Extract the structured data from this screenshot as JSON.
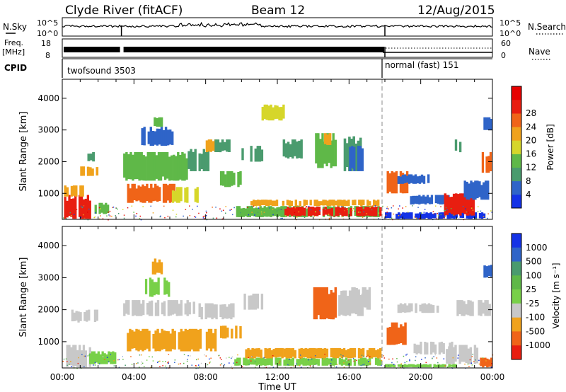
{
  "header": {
    "station": "Clyde River (fitACF)",
    "beam": "Beam 12",
    "date": "12/Aug/2015"
  },
  "strip": {
    "nsky_label": "N.Sky",
    "nsky_tick_top": "10^5",
    "nsky_tick_bottom": "10^0",
    "nsearch_label": "N.Search",
    "freq_label": "Freq.",
    "freq_unit": "[MHz]",
    "freq_tick_top": "18",
    "freq_tick_bottom": "8",
    "nave_tick_top": "60",
    "nave_tick_bottom": "0",
    "nave_label": "Nave",
    "cpid_label": "CPID",
    "cpid_segments": [
      {
        "label": "twofsound 3503",
        "start_hour": 0,
        "end_hour": 18
      },
      {
        "label": "normal (fast) 151",
        "start_hour": 18,
        "end_hour": 24
      }
    ]
  },
  "chart_data": [
    {
      "type": "heatmap",
      "panel": "power",
      "ylabel": "Slant Range [km]",
      "xlabel": "",
      "ylim": [
        180,
        4600
      ],
      "yticks": [
        "1000",
        "2000",
        "3000",
        "4000"
      ],
      "xlim_hours": [
        0,
        24
      ],
      "colorbar": {
        "label": "Power [dB]",
        "ticks": [
          "4",
          "8",
          "12",
          "16",
          "20",
          "24",
          "28"
        ],
        "colors": [
          "#1432e6",
          "#2f64c8",
          "#4a9b6e",
          "#5fb848",
          "#d6d62a",
          "#f0a21c",
          "#f06418",
          "#e81e10",
          "#e60000"
        ]
      },
      "regions": [
        {
          "t": [
            0.1,
            1.6
          ],
          "r": [
            200,
            950
          ],
          "color": "#e81e10"
        },
        {
          "t": [
            0.1,
            1.2
          ],
          "r": [
            900,
            1250
          ],
          "color": "#f0a21c"
        },
        {
          "t": [
            1.0,
            2.0
          ],
          "r": [
            1550,
            1850
          ],
          "color": "#f0a21c"
        },
        {
          "t": [
            1.4,
            1.8
          ],
          "r": [
            2000,
            2300
          ],
          "color": "#4a9b6e"
        },
        {
          "t": [
            1.8,
            2.6
          ],
          "r": [
            350,
            700
          ],
          "color": "#5fb848"
        },
        {
          "t": [
            3.4,
            7.0
          ],
          "r": [
            1400,
            2300
          ],
          "color": "#5fb848"
        },
        {
          "t": [
            3.5,
            6.3
          ],
          "r": [
            700,
            1300
          ],
          "color": "#f06418"
        },
        {
          "t": [
            4.4,
            6.2
          ],
          "r": [
            2500,
            3100
          ],
          "color": "#2f64c8"
        },
        {
          "t": [
            5.1,
            5.6
          ],
          "r": [
            3100,
            3400
          ],
          "color": "#5fb848"
        },
        {
          "t": [
            6.0,
            7.6
          ],
          "r": [
            700,
            1200
          ],
          "color": "#d6d62a"
        },
        {
          "t": [
            7.0,
            8.2
          ],
          "r": [
            1700,
            2400
          ],
          "color": "#4a9b6e"
        },
        {
          "t": [
            8.0,
            8.6
          ],
          "r": [
            2300,
            2700
          ],
          "color": "#f0a21c"
        },
        {
          "t": [
            8.5,
            9.5
          ],
          "r": [
            2300,
            2700
          ],
          "color": "#4a9b6e"
        },
        {
          "t": [
            8.8,
            10.0
          ],
          "r": [
            1200,
            1700
          ],
          "color": "#5fb848"
        },
        {
          "t": [
            10.0,
            11.2
          ],
          "r": [
            2000,
            2500
          ],
          "color": "#4a9b6e"
        },
        {
          "t": [
            11.0,
            12.4
          ],
          "r": [
            3300,
            3800
          ],
          "color": "#d6d62a"
        },
        {
          "t": [
            12.3,
            13.4
          ],
          "r": [
            2100,
            2700
          ],
          "color": "#4a9b6e"
        },
        {
          "t": [
            14.1,
            15.3
          ],
          "r": [
            1800,
            2900
          ],
          "color": "#5fb848"
        },
        {
          "t": [
            14.6,
            15.0
          ],
          "r": [
            2500,
            2900
          ],
          "color": "#f0a21c"
        },
        {
          "t": [
            15.7,
            16.7
          ],
          "r": [
            1700,
            2800
          ],
          "color": "#4a9b6e"
        },
        {
          "t": [
            9.7,
            17.7
          ],
          "r": [
            250,
            600
          ],
          "color": "#5fb848"
        },
        {
          "t": [
            12.4,
            17.8
          ],
          "r": [
            280,
            580
          ],
          "color": "#e81e10"
        },
        {
          "t": [
            10.5,
            17.8
          ],
          "r": [
            600,
            800
          ],
          "color": "#f0a21c"
        },
        {
          "t": [
            18.1,
            19.3
          ],
          "r": [
            1000,
            1700
          ],
          "color": "#f06418"
        },
        {
          "t": [
            18.7,
            20.6
          ],
          "r": [
            1300,
            1600
          ],
          "color": "#2f64c8"
        },
        {
          "t": [
            18.0,
            23.6
          ],
          "r": [
            200,
            400
          ],
          "color": "#1432e6"
        },
        {
          "t": [
            19.4,
            21.6
          ],
          "r": [
            650,
            950
          ],
          "color": "#2f64c8"
        },
        {
          "t": [
            21.3,
            23.0
          ],
          "r": [
            300,
            1000
          ],
          "color": "#e81e10"
        },
        {
          "t": [
            22.4,
            23.8
          ],
          "r": [
            800,
            1400
          ],
          "color": "#2f64c8"
        },
        {
          "t": [
            23.4,
            23.95
          ],
          "r": [
            1650,
            2300
          ],
          "color": "#f06418"
        },
        {
          "t": [
            23.5,
            24.0
          ],
          "r": [
            3000,
            3400
          ],
          "color": "#2f64c8"
        },
        {
          "t": [
            21.9,
            22.5
          ],
          "r": [
            2300,
            2700
          ],
          "color": "#4a9b6e"
        },
        {
          "t": [
            16.0,
            16.8
          ],
          "r": [
            1700,
            2500
          ],
          "color": "#2f64c8"
        }
      ]
    },
    {
      "type": "heatmap",
      "panel": "velocity",
      "ylabel": "Slant Range [km]",
      "xlabel": "Time UT",
      "ylim": [
        180,
        4600
      ],
      "yticks": [
        "1000",
        "2000",
        "3000",
        "4000"
      ],
      "xlim_hours": [
        0,
        24
      ],
      "xticks": [
        "00:00",
        "04:00",
        "08:00",
        "12:00",
        "16:00",
        "20:00",
        "00:00"
      ],
      "colorbar": {
        "label": "Velocity [m s⁻¹]",
        "ticks": [
          "1000",
          "500",
          "100",
          "25",
          "-25",
          "-100",
          "-500",
          "-1000"
        ],
        "colors": [
          "#1432e6",
          "#2f64c8",
          "#4a9b6e",
          "#5fb848",
          "#78d048",
          "#c8c8c8",
          "#f0a21c",
          "#f06418",
          "#e81e10"
        ]
      },
      "regions": [
        {
          "t": [
            0.1,
            1.6
          ],
          "r": [
            200,
            900
          ],
          "color": "#c8c8c8"
        },
        {
          "t": [
            1.5,
            3.0
          ],
          "r": [
            300,
            700
          ],
          "color": "#78d048"
        },
        {
          "t": [
            0.5,
            2.0
          ],
          "r": [
            1600,
            2000
          ],
          "color": "#c8c8c8"
        },
        {
          "t": [
            3.4,
            7.4
          ],
          "r": [
            1800,
            2300
          ],
          "color": "#c8c8c8"
        },
        {
          "t": [
            3.6,
            8.6
          ],
          "r": [
            700,
            1400
          ],
          "color": "#f0a21c"
        },
        {
          "t": [
            4.5,
            6.0
          ],
          "r": [
            2400,
            3000
          ],
          "color": "#78d048"
        },
        {
          "t": [
            5.0,
            5.6
          ],
          "r": [
            3100,
            3600
          ],
          "color": "#f0a21c"
        },
        {
          "t": [
            7.6,
            9.6
          ],
          "r": [
            1700,
            2200
          ],
          "color": "#c8c8c8"
        },
        {
          "t": [
            8.8,
            10.0
          ],
          "r": [
            1100,
            1500
          ],
          "color": "#f0a21c"
        },
        {
          "t": [
            10.0,
            11.2
          ],
          "r": [
            2000,
            2500
          ],
          "color": "#c8c8c8"
        },
        {
          "t": [
            9.6,
            17.8
          ],
          "r": [
            250,
            500
          ],
          "color": "#78d048"
        },
        {
          "t": [
            10.2,
            17.8
          ],
          "r": [
            480,
            800
          ],
          "color": "#f0a21c"
        },
        {
          "t": [
            14.0,
            15.3
          ],
          "r": [
            1700,
            2700
          ],
          "color": "#f06418"
        },
        {
          "t": [
            15.4,
            16.8
          ],
          "r": [
            1800,
            2600
          ],
          "color": "#c8c8c8"
        },
        {
          "t": [
            16.0,
            17.2
          ],
          "r": [
            2000,
            2700
          ],
          "color": "#c8c8c8"
        },
        {
          "t": [
            18.1,
            19.2
          ],
          "r": [
            900,
            1600
          ],
          "color": "#f06418"
        },
        {
          "t": [
            18.7,
            21.0
          ],
          "r": [
            1900,
            2200
          ],
          "color": "#c8c8c8"
        },
        {
          "t": [
            19.6,
            21.8
          ],
          "r": [
            600,
            1000
          ],
          "color": "#c8c8c8"
        },
        {
          "t": [
            21.4,
            23.2
          ],
          "r": [
            300,
            900
          ],
          "color": "#c8c8c8"
        },
        {
          "t": [
            22.0,
            23.9
          ],
          "r": [
            1800,
            2300
          ],
          "color": "#c8c8c8"
        },
        {
          "t": [
            23.3,
            24.0
          ],
          "r": [
            200,
            500
          ],
          "color": "#f06418"
        },
        {
          "t": [
            23.5,
            24.0
          ],
          "r": [
            3000,
            3400
          ],
          "color": "#2f64c8"
        },
        {
          "t": [
            18.0,
            22.0
          ],
          "r": [
            200,
            300
          ],
          "color": "#78d048"
        }
      ]
    }
  ]
}
